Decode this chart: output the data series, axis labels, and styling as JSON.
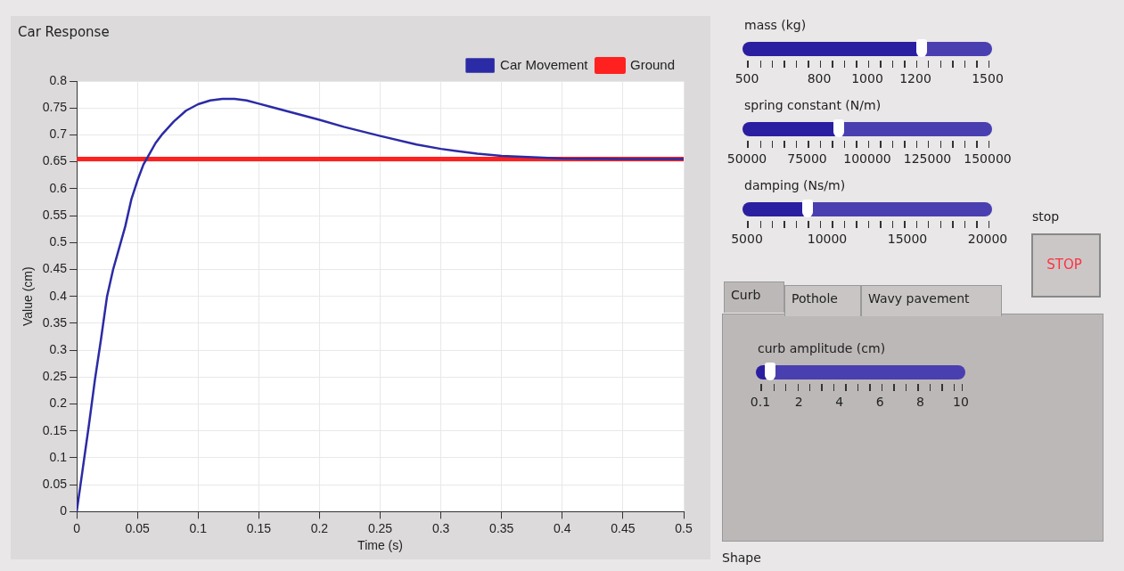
{
  "chart_data": [
    {
      "type": "line",
      "title": "Car Response",
      "xlabel": "Time (s)",
      "ylabel": "Value (cm)",
      "xlim": [
        0,
        0.5
      ],
      "xticks": [
        0,
        0.05,
        0.1,
        0.15,
        0.2,
        0.25,
        0.3,
        0.35,
        0.4,
        0.45,
        0.5
      ],
      "ylim": [
        0,
        0.8
      ],
      "yticks": [
        0,
        0.05,
        0.1,
        0.15,
        0.2,
        0.25,
        0.3,
        0.35,
        0.4,
        0.45,
        0.5,
        0.55,
        0.6,
        0.65,
        0.7,
        0.75,
        0.8
      ],
      "grid": true,
      "legend": "top right",
      "series": [
        {
          "name": "Car Movement",
          "color": "#2b2ba6",
          "x": [
            0,
            0.005,
            0.01,
            0.015,
            0.02,
            0.025,
            0.03,
            0.035,
            0.04,
            0.045,
            0.05,
            0.055,
            0.06,
            0.065,
            0.07,
            0.08,
            0.09,
            0.1,
            0.11,
            0.12,
            0.13,
            0.14,
            0.15,
            0.16,
            0.18,
            0.2,
            0.22,
            0.25,
            0.28,
            0.3,
            0.33,
            0.35,
            0.38,
            0.4,
            0.45,
            0.5
          ],
          "values": [
            0,
            0.08,
            0.16,
            0.245,
            0.32,
            0.4,
            0.45,
            0.49,
            0.53,
            0.58,
            0.615,
            0.645,
            0.665,
            0.685,
            0.7,
            0.725,
            0.745,
            0.757,
            0.764,
            0.767,
            0.767,
            0.764,
            0.758,
            0.752,
            0.74,
            0.728,
            0.715,
            0.698,
            0.682,
            0.674,
            0.665,
            0.661,
            0.658,
            0.656,
            0.655,
            0.655
          ]
        },
        {
          "name": "Ground",
          "color": "#ff2020",
          "x": [
            0,
            0.5
          ],
          "values": [
            0.655,
            0.655
          ]
        }
      ]
    },
    {
      "type": "other",
      "annotations": [
        "mass (kg)",
        "500",
        "800",
        "1000",
        "1200",
        "1500",
        "spring constant (N/m)",
        "50000",
        "75000",
        "100000",
        "125000",
        "150000",
        "damping (Ns/m)",
        "5000",
        "10000",
        "15000",
        "20000",
        "stop",
        "STOP",
        "Curb",
        "Pothole",
        "Wavy pavement",
        "curb amplitude (cm)",
        "0.1",
        "2",
        "4",
        "6",
        "8",
        "10",
        "Shape"
      ]
    }
  ]
}
